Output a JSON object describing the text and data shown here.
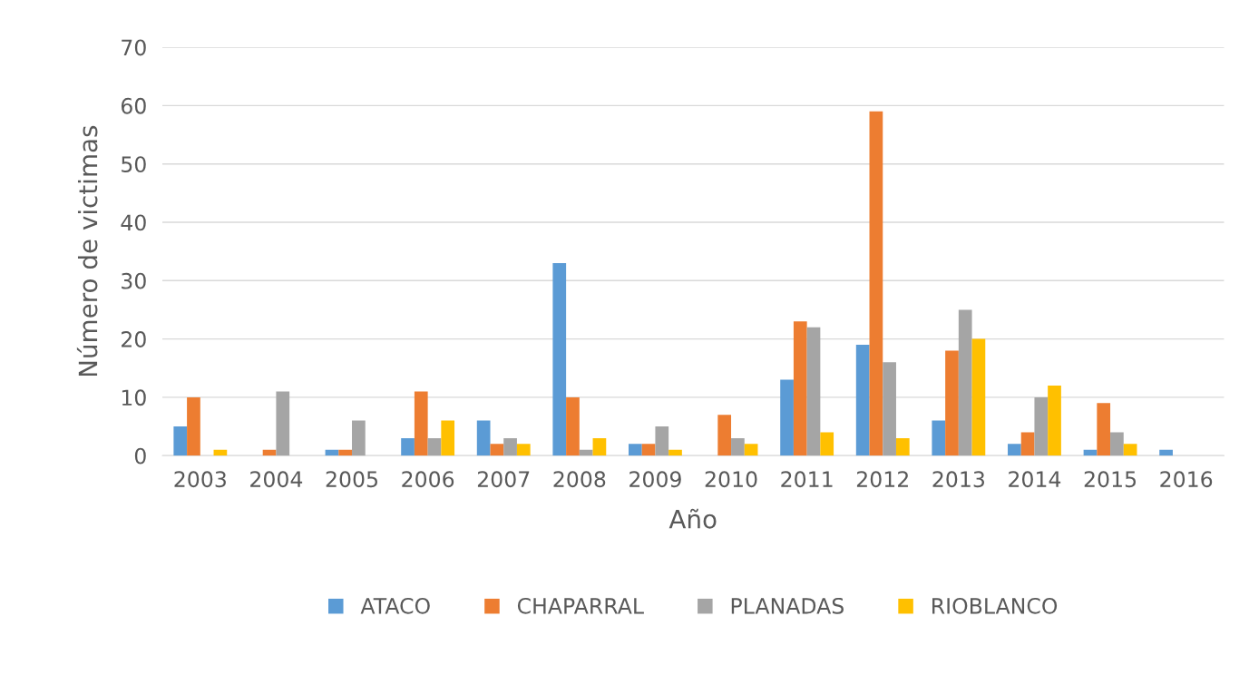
{
  "chart_data": {
    "type": "bar",
    "xlabel": "Año",
    "ylabel": "Número de victimas",
    "categories": [
      "2003",
      "2004",
      "2005",
      "2006",
      "2007",
      "2008",
      "2009",
      "2010",
      "2011",
      "2012",
      "2013",
      "2014",
      "2015",
      "2016"
    ],
    "series": [
      {
        "name": "ATACO",
        "color": "#5b9bd5",
        "values": [
          5,
          0,
          1,
          3,
          6,
          33,
          2,
          0,
          13,
          19,
          6,
          2,
          1,
          1
        ]
      },
      {
        "name": "CHAPARRAL",
        "color": "#ed7d31",
        "values": [
          10,
          1,
          1,
          11,
          2,
          10,
          2,
          7,
          23,
          59,
          18,
          4,
          9,
          0
        ]
      },
      {
        "name": "PLANADAS",
        "color": "#a5a5a5",
        "values": [
          0,
          11,
          6,
          3,
          3,
          1,
          5,
          3,
          22,
          16,
          25,
          10,
          4,
          0
        ]
      },
      {
        "name": "RIOBLANCO",
        "color": "#ffc000",
        "values": [
          1,
          0,
          0,
          6,
          2,
          3,
          1,
          2,
          4,
          3,
          20,
          12,
          2,
          0
        ]
      }
    ],
    "ylim": [
      0,
      70
    ],
    "yticks": [
      0,
      10,
      20,
      30,
      40,
      50,
      60,
      70
    ],
    "grid": "y",
    "legend": "bottom"
  }
}
